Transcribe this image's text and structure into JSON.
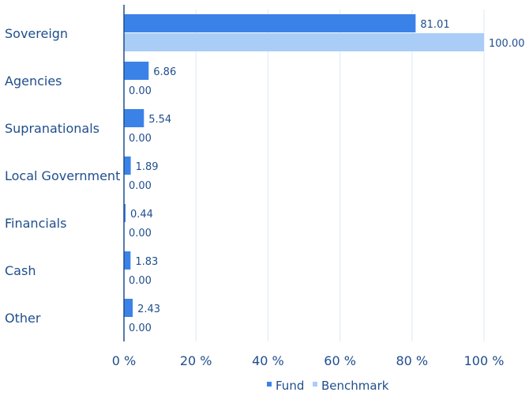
{
  "chart_data": {
    "type": "bar",
    "orientation": "horizontal",
    "categories": [
      "Sovereign",
      "Agencies",
      "Supranationals",
      "Local Government",
      "Financials",
      "Cash",
      "Other"
    ],
    "series": [
      {
        "name": "Fund",
        "values": [
          81.01,
          6.86,
          5.54,
          1.89,
          0.44,
          1.83,
          2.43
        ],
        "labels": [
          "81.01",
          "6.86",
          "5.54",
          "1.89",
          "0.44",
          "1.83",
          "2.43"
        ]
      },
      {
        "name": "Benchmark",
        "values": [
          100.0,
          0.0,
          0.0,
          0.0,
          0.0,
          0.0,
          0.0
        ],
        "labels": [
          "100.00",
          "0.00",
          "0.00",
          "0.00",
          "0.00",
          "0.00",
          "0.00"
        ]
      }
    ],
    "xlim": [
      0,
      100
    ],
    "xticks": [
      0,
      20,
      40,
      60,
      80,
      100
    ],
    "xtick_labels": [
      "0 %",
      "20 %",
      "40 %",
      "60 %",
      "80 %",
      "100 %"
    ],
    "grid": "vertical",
    "legend_position": "bottom-center"
  },
  "colors": {
    "fund": "#3b82e8",
    "benchmark": "#a9cdf7",
    "grid": "#dbe8f7",
    "axis": "#1f4e8c",
    "text": "#1f4e8c"
  }
}
